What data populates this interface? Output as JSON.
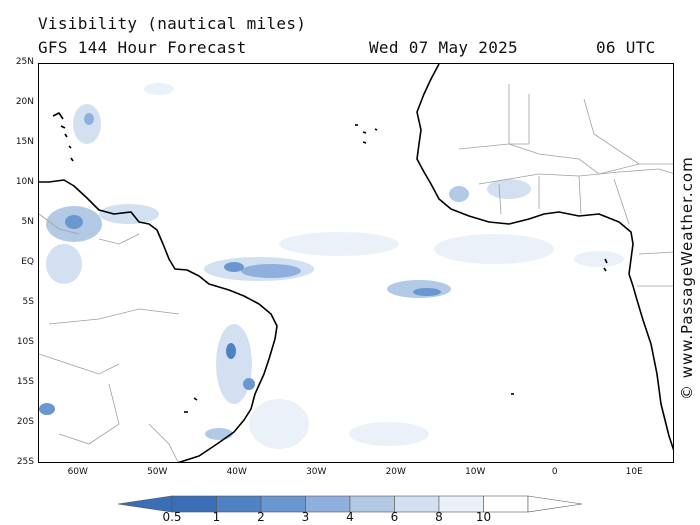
{
  "header": {
    "title": "Visibility (nautical miles)",
    "subtitle": "GFS 144 Hour Forecast",
    "date": "Wed 07 May 2025",
    "time": "06 UTC"
  },
  "credit": "© www.PassageWeather.com",
  "map": {
    "lat_labels": [
      "25N",
      "20N",
      "15N",
      "10N",
      "5N",
      "EQ",
      "5S",
      "10S",
      "15S",
      "20S",
      "25S"
    ],
    "lon_labels": [
      "60W",
      "50W",
      "40W",
      "30W",
      "20W",
      "10W",
      "0",
      "10E"
    ],
    "lat_range": [
      -25,
      25
    ],
    "lon_range": [
      -65,
      15
    ],
    "coast_color": "#000000",
    "border_color": "#a0a0a0"
  },
  "legend": {
    "labels": [
      "0.5",
      "1",
      "2",
      "3",
      "4",
      "6",
      "8",
      "10"
    ],
    "colors": [
      "#3a6fb8",
      "#4f82c4",
      "#6a97d0",
      "#8fb0dc",
      "#b3cae7",
      "#d3e0f1",
      "#ebf1f9",
      "#ffffff"
    ]
  }
}
